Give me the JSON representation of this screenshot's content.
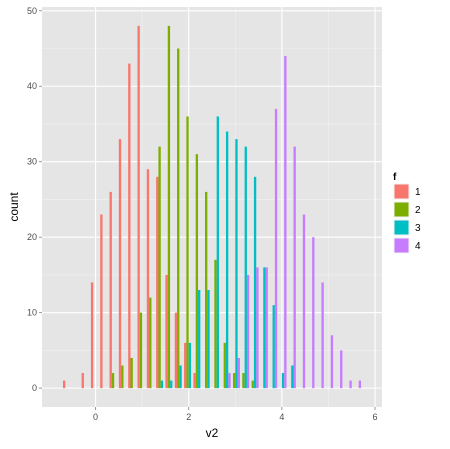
{
  "chart_data": {
    "type": "bar",
    "title": "",
    "xlabel": "v2",
    "ylabel": "count",
    "xlim": [
      -1.15,
      6.15
    ],
    "ylim": [
      -2.5,
      50.5
    ],
    "x_ticks": [
      0,
      2,
      4,
      6
    ],
    "x_tick_labels": [
      "0",
      "2",
      "4",
      "6"
    ],
    "y_ticks": [
      0,
      10,
      20,
      30,
      40,
      50
    ],
    "y_tick_labels": [
      "0",
      "10",
      "20",
      "30",
      "40",
      "50"
    ],
    "grid": true,
    "legend": {
      "title": "f",
      "position": "right",
      "entries": [
        {
          "label": "1",
          "color": "#F8766D"
        },
        {
          "label": "2",
          "color": "#7CAE00"
        },
        {
          "label": "3",
          "color": "#00BFC4"
        },
        {
          "label": "4",
          "color": "#C77CFF"
        }
      ]
    },
    "series": [
      {
        "name": "1",
        "color": "#F8766D",
        "x": [
          -0.6,
          -0.2,
          0.0,
          0.2,
          0.4,
          0.6,
          0.8,
          1.0,
          1.2,
          1.4,
          1.6,
          1.8,
          2.0,
          2.2
        ],
        "values": [
          1,
          2,
          14,
          23,
          26,
          33,
          43,
          48,
          29,
          28,
          15,
          10,
          6,
          2
        ]
      },
      {
        "name": "2",
        "color": "#7CAE00",
        "x": [
          0.4,
          0.6,
          0.8,
          1.0,
          1.2,
          1.4,
          1.6,
          1.8,
          2.0,
          2.2,
          2.4,
          2.6,
          2.8,
          3.0,
          3.2,
          3.4
        ],
        "values": [
          2,
          3,
          4,
          10,
          12,
          32,
          48,
          45,
          36,
          31,
          26,
          17,
          6,
          2,
          2,
          1
        ]
      },
      {
        "name": "3",
        "color": "#00BFC4",
        "x": [
          1.4,
          1.6,
          1.8,
          2.0,
          2.2,
          2.4,
          2.6,
          2.8,
          3.0,
          3.2,
          3.4,
          3.6,
          3.8,
          4.0,
          4.2
        ],
        "values": [
          1,
          1,
          3,
          6,
          13,
          13,
          36,
          34,
          33,
          32,
          28,
          16,
          11,
          2,
          3
        ]
      },
      {
        "name": "4",
        "color": "#C77CFF",
        "x": [
          2.8,
          3.0,
          3.2,
          3.4,
          3.6,
          3.8,
          4.0,
          4.2,
          4.4,
          4.6,
          4.8,
          5.0,
          5.2,
          5.4,
          5.6
        ],
        "values": [
          2,
          4,
          15,
          16,
          16,
          37,
          44,
          32,
          23,
          20,
          14,
          7,
          5,
          1,
          1
        ]
      }
    ]
  }
}
